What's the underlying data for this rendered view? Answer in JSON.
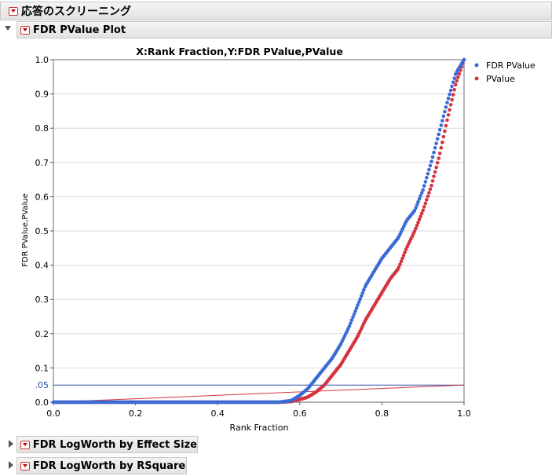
{
  "report": {
    "title": "応答のスクリーニング",
    "plot_section_title": "FDR PValue Plot",
    "effect_size_title": "FDR LogWorth by Effect Size",
    "rsquare_title": "FDR LogWorth by RSquare"
  },
  "chart_data": {
    "type": "scatter",
    "title": "X:Rank Fraction,Y:FDR PValue,PValue",
    "xlabel": "Rank Fraction",
    "ylabel": "FDR PValue,PValue",
    "xlim": [
      0,
      1.0
    ],
    "ylim": [
      0,
      1.0
    ],
    "x_ticks": [
      "0.0",
      "0.2",
      "0.4",
      "0.6",
      "0.8",
      "1.0"
    ],
    "y_ticks": [
      "0.0",
      "0.1",
      "0.2",
      "0.3",
      "0.4",
      "0.5",
      "0.6",
      "0.7",
      "0.8",
      "0.9",
      "1.0"
    ],
    "y_ref_label": ".05",
    "y_ref_value": 0.05,
    "grid": true,
    "legend_position": "right",
    "colors": {
      "fdr": "#3a6bd6",
      "pvalue": "#d4333f",
      "ref_line": "#2e4fa8",
      "diag_line": "#d4333f"
    },
    "series": [
      {
        "name": "FDR PValue",
        "x": [
          0.0,
          0.55,
          0.58,
          0.6,
          0.62,
          0.64,
          0.66,
          0.68,
          0.7,
          0.72,
          0.74,
          0.76,
          0.78,
          0.8,
          0.82,
          0.84,
          0.86,
          0.88,
          0.9,
          0.92,
          0.94,
          0.96,
          0.98,
          1.0
        ],
        "y": [
          0.0,
          0.0,
          0.005,
          0.02,
          0.04,
          0.07,
          0.1,
          0.13,
          0.17,
          0.22,
          0.28,
          0.34,
          0.38,
          0.42,
          0.45,
          0.48,
          0.53,
          0.56,
          0.62,
          0.7,
          0.79,
          0.88,
          0.96,
          1.0
        ]
      },
      {
        "name": "PValue",
        "x": [
          0.0,
          0.55,
          0.58,
          0.6,
          0.62,
          0.64,
          0.66,
          0.68,
          0.7,
          0.72,
          0.74,
          0.76,
          0.78,
          0.8,
          0.82,
          0.84,
          0.86,
          0.88,
          0.9,
          0.92,
          0.94,
          0.96,
          0.98,
          1.0
        ],
        "y": [
          0.0,
          0.0,
          0.002,
          0.008,
          0.015,
          0.03,
          0.05,
          0.08,
          0.11,
          0.15,
          0.19,
          0.24,
          0.28,
          0.32,
          0.36,
          0.39,
          0.45,
          0.5,
          0.56,
          0.63,
          0.72,
          0.83,
          0.93,
          1.0
        ]
      }
    ]
  }
}
